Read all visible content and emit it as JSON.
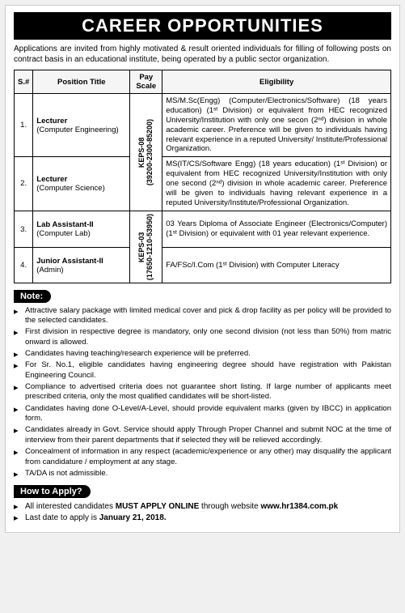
{
  "banner_title": "CAREER OPPORTUNITIES",
  "intro_text": "Applications are invited from highly motivated & result oriented individuals for filling of following posts on contract basis in an educational institute, being operated by a public sector organization.",
  "table": {
    "headers": {
      "sn": "S.#",
      "position": "Position Title",
      "payscale": "Pay Scale",
      "eligibility": "Eligibility"
    },
    "payscale_groups": [
      {
        "code": "KEPS-08",
        "range": "(39200-2300-85200)",
        "rowspan": 2
      },
      {
        "code": "KEPS-03",
        "range": "(17650-1210-53950)",
        "rowspan": 2
      }
    ],
    "rows": [
      {
        "sn": "1.",
        "position_main": "Lecturer",
        "position_sub": "(Computer Engineering)",
        "eligibility": "MS/M.Sc(Engg) (Computer/Electronics/Software) (18 years education) (1ˢᵗ Division) or equivalent from HEC recognized University/Institution with only one secon (2ⁿᵈ) division in whole academic career. Preference will be given to individuals having relevant experience in a reputed University/ Institute/Professional Organization."
      },
      {
        "sn": "2.",
        "position_main": "Lecturer",
        "position_sub": "(Computer Science)",
        "eligibility": "MS(IT/CS/Software Engg) (18 years education) (1ˢᵗ Division) or equivalent from HEC recognized University/Institution with only one second (2ⁿᵈ) division in whole academic career. Preference will be given to individuals having relevant experience in a reputed University/Institute/Professional Organization."
      },
      {
        "sn": "3.",
        "position_main": "Lab Assistant-II",
        "position_sub": "(Computer Lab)",
        "eligibility": "03 Years Diploma of Associate Engineer (Electronics/Computer) (1ˢᵗ Division) or equivalent with 01 year relevant experience."
      },
      {
        "sn": "4.",
        "position_main": "Junior Assistant-II",
        "position_sub": "(Admin)",
        "eligibility": "FA/FSc/I.Com (1ˢᵗ Division) with Computer Literacy"
      }
    ]
  },
  "note_heading": "Note:",
  "notes": [
    "Attractive salary package with limited medical cover and pick & drop facility as per policy will be provided to the selected candidates.",
    "First division in respective degree is mandatory, only one second division (not less than 50%) from matric onward is allowed.",
    "Candidates having teaching/research experience will be preferred.",
    "For Sr. No.1, eligible candidates having engineering degree should have registration with Pakistan Engineering Council.",
    "Compliance to advertised criteria does not guarantee short listing. If large number of applicants meet prescribed criteria, only the most qualified candidates will be short-listed.",
    "Candidates having done O-Level/A-Level, should provide equivalent marks (given by IBCC) in application form.",
    "Candidates already in Govt. Service should apply Through Proper Channel and submit NOC at the time of interview from their parent departments that if selected they will be relieved accordingly.",
    "Concealment of information in any respect (academic/experience or any other) may disqualify the applicant from candidature / employment at any stage.",
    "TA/DA is not admissible."
  ],
  "apply_heading": "How to Apply?",
  "apply_items": [
    {
      "prefix": "All interested candidates ",
      "bold1": "MUST APPLY ONLINE",
      "mid": " through website ",
      "bold2": "www.hr1384.com.pk"
    },
    {
      "prefix": "Last date to apply is ",
      "bold1": "January 21, 2018.",
      "mid": "",
      "bold2": ""
    }
  ]
}
